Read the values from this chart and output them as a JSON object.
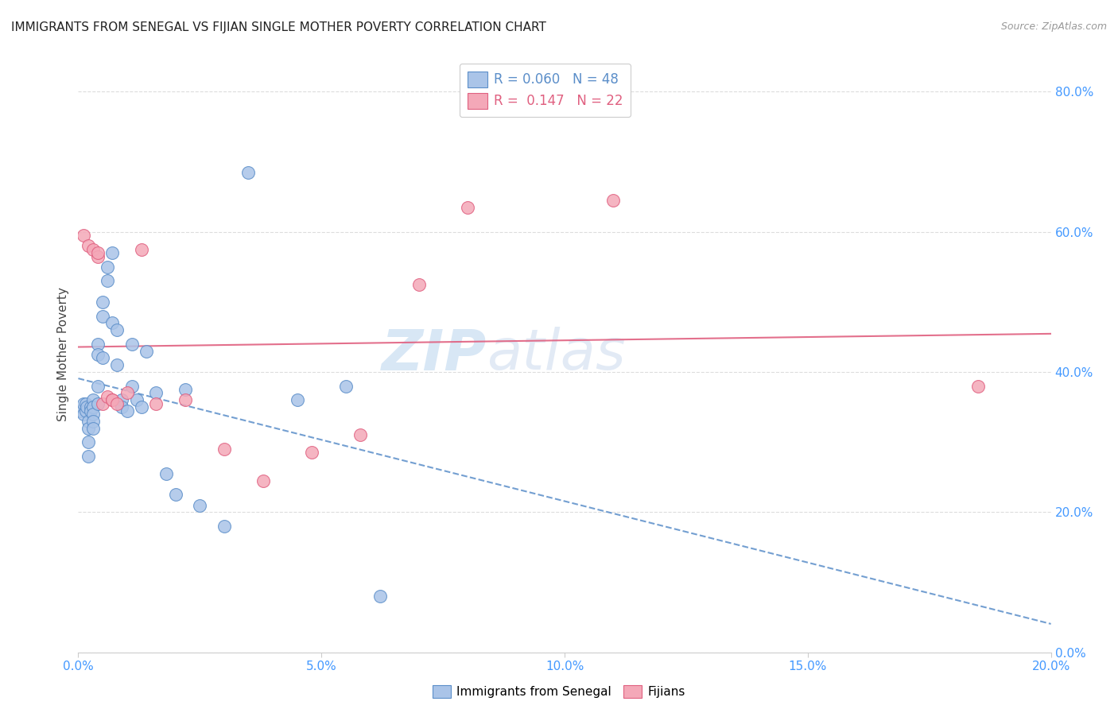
{
  "title": "IMMIGRANTS FROM SENEGAL VS FIJIAN SINGLE MOTHER POVERTY CORRELATION CHART",
  "source": "Source: ZipAtlas.com",
  "ylabel_label": "Single Mother Poverty",
  "xlim": [
    0,
    0.2
  ],
  "ylim": [
    0,
    0.85
  ],
  "legend_r1": "R = 0.060",
  "legend_n1": "N = 48",
  "legend_r2": "R =  0.147",
  "legend_n2": "N = 22",
  "color_senegal": "#aac4e8",
  "color_fijian": "#f4a8b8",
  "line_color_senegal": "#5b8ec9",
  "line_color_fijian": "#e06080",
  "watermark_zip": "ZIP",
  "watermark_atlas": "atlas",
  "senegal_x": [
    0.0005,
    0.001,
    0.001,
    0.0015,
    0.0015,
    0.0018,
    0.002,
    0.002,
    0.002,
    0.002,
    0.0025,
    0.0025,
    0.003,
    0.003,
    0.003,
    0.003,
    0.003,
    0.004,
    0.004,
    0.004,
    0.004,
    0.005,
    0.005,
    0.005,
    0.006,
    0.006,
    0.007,
    0.007,
    0.008,
    0.008,
    0.009,
    0.009,
    0.01,
    0.011,
    0.011,
    0.012,
    0.013,
    0.014,
    0.016,
    0.018,
    0.02,
    0.022,
    0.025,
    0.03,
    0.035,
    0.045,
    0.055,
    0.062
  ],
  "senegal_y": [
    0.345,
    0.355,
    0.34,
    0.355,
    0.345,
    0.35,
    0.33,
    0.32,
    0.3,
    0.28,
    0.35,
    0.345,
    0.36,
    0.35,
    0.34,
    0.33,
    0.32,
    0.44,
    0.425,
    0.38,
    0.355,
    0.5,
    0.48,
    0.42,
    0.55,
    0.53,
    0.57,
    0.47,
    0.46,
    0.41,
    0.36,
    0.35,
    0.345,
    0.44,
    0.38,
    0.36,
    0.35,
    0.43,
    0.37,
    0.255,
    0.225,
    0.375,
    0.21,
    0.18,
    0.685,
    0.36,
    0.38,
    0.08
  ],
  "fijian_x": [
    0.001,
    0.002,
    0.003,
    0.004,
    0.004,
    0.005,
    0.006,
    0.007,
    0.007,
    0.008,
    0.01,
    0.013,
    0.016,
    0.022,
    0.03,
    0.038,
    0.048,
    0.058,
    0.07,
    0.08,
    0.11,
    0.185
  ],
  "fijian_y": [
    0.595,
    0.58,
    0.575,
    0.565,
    0.57,
    0.355,
    0.365,
    0.36,
    0.36,
    0.355,
    0.37,
    0.575,
    0.355,
    0.36,
    0.29,
    0.245,
    0.285,
    0.31,
    0.525,
    0.635,
    0.645,
    0.38
  ],
  "background_color": "#ffffff",
  "grid_color": "#dddddd"
}
